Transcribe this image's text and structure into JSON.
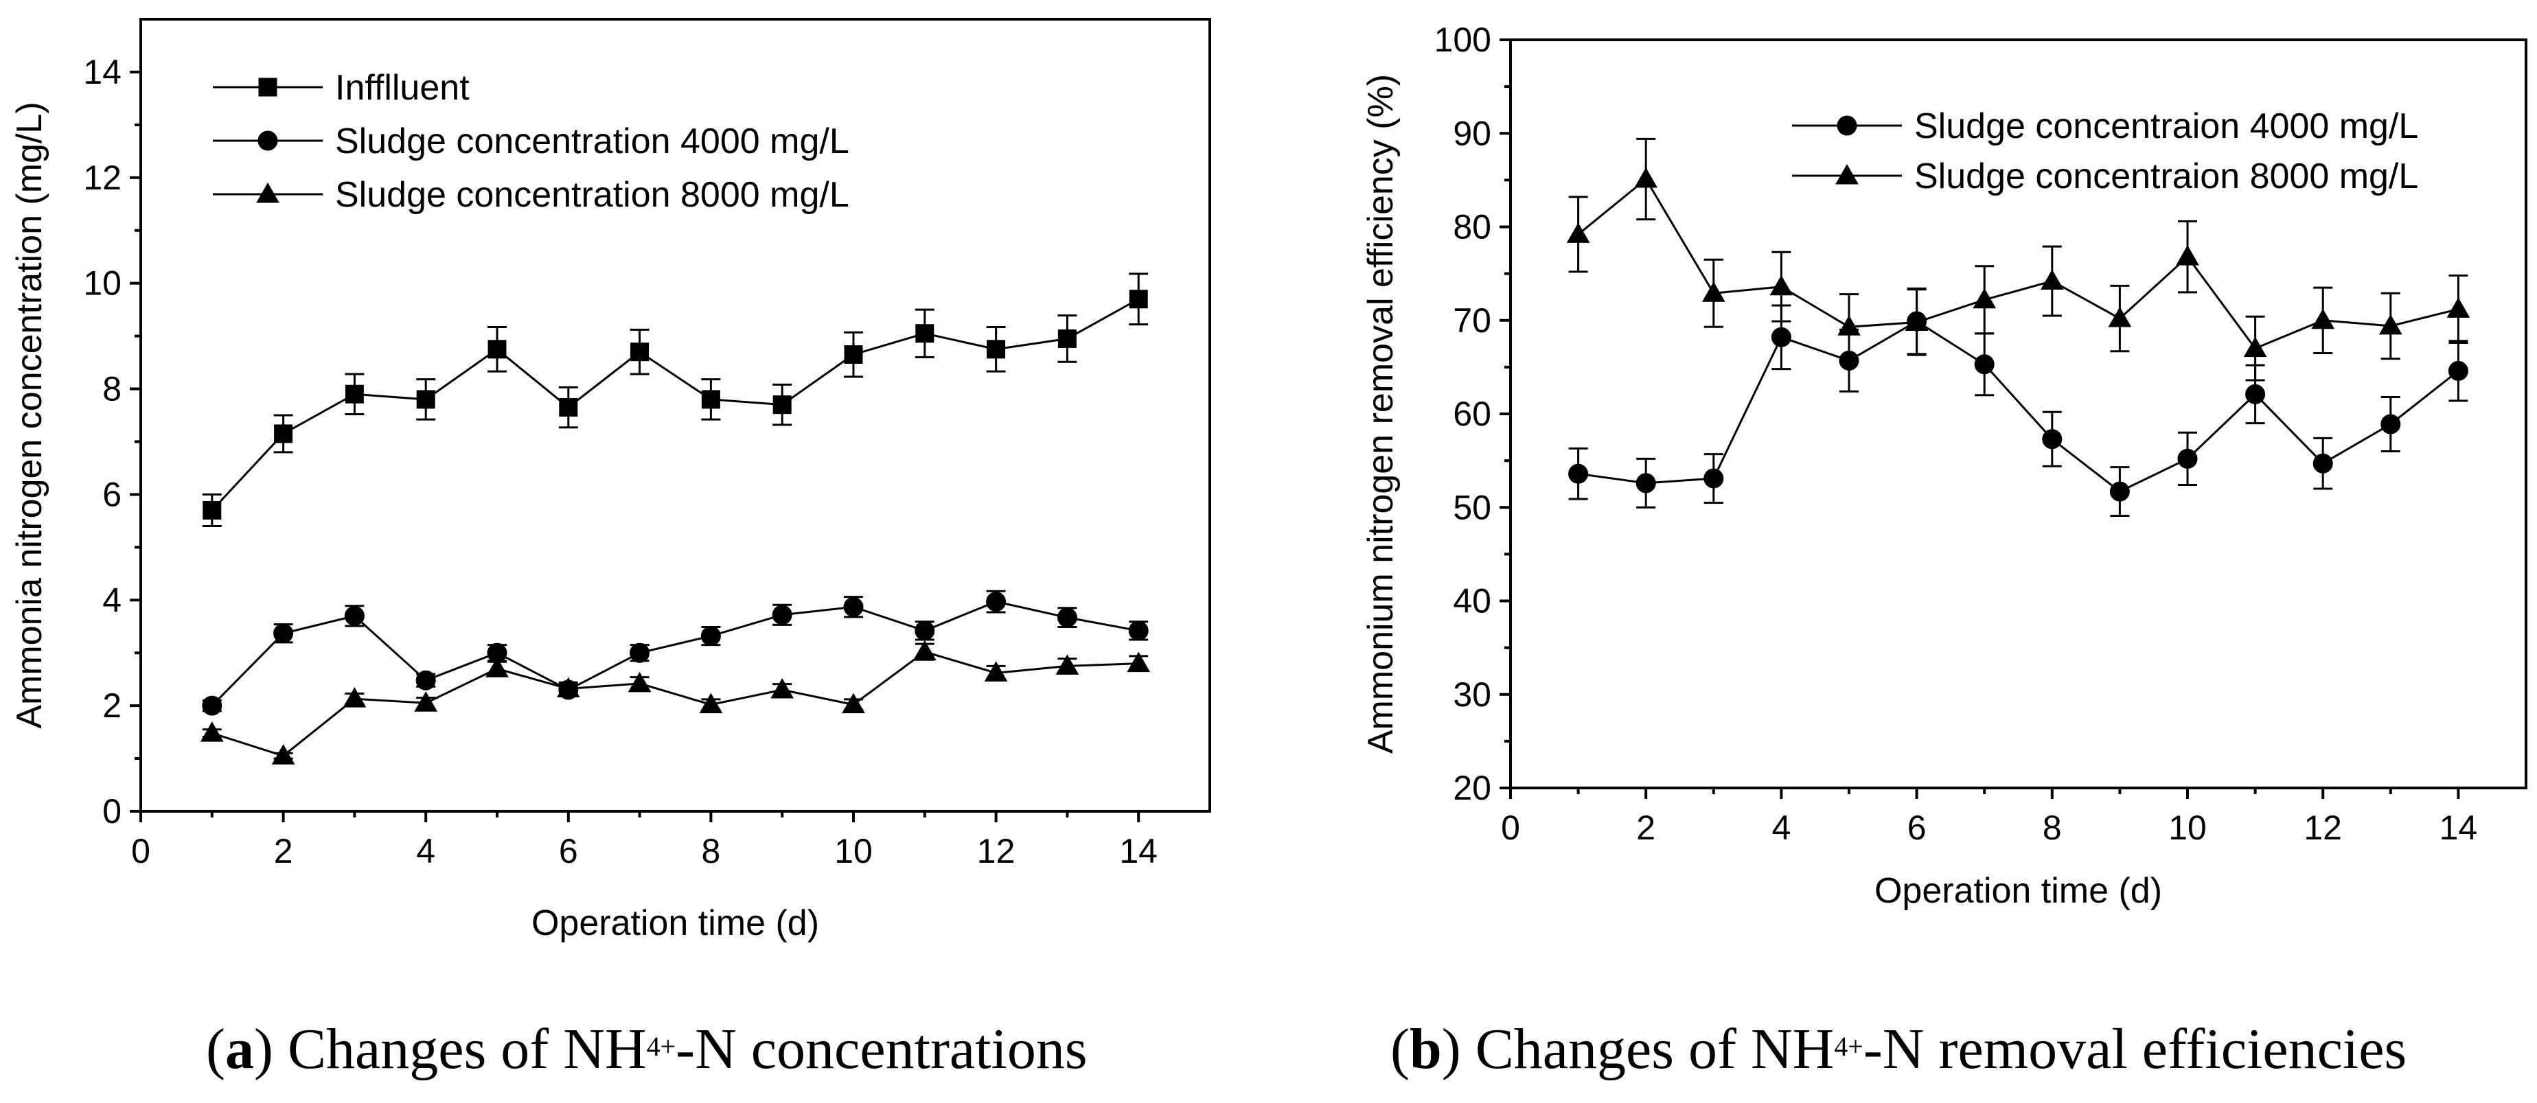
{
  "chart_data": [
    {
      "id": "a",
      "type": "line",
      "title": "",
      "xlabel": "Operation time (d)",
      "ylabel": "Ammonia nitrogen concentration (mg/L)",
      "xlim": [
        0,
        15
      ],
      "ylim": [
        0,
        15
      ],
      "xticks": [
        0,
        2,
        4,
        6,
        8,
        10,
        12,
        14
      ],
      "yticks": [
        0,
        2,
        4,
        6,
        8,
        10,
        12,
        14
      ],
      "legend_position": "top-left",
      "x": [
        1,
        2,
        3,
        4,
        5,
        6,
        7,
        8,
        9,
        10,
        11,
        12,
        13,
        14
      ],
      "series": [
        {
          "name": "Infflluent",
          "marker": "square",
          "values": [
            5.7,
            7.15,
            7.9,
            7.8,
            8.75,
            7.65,
            8.7,
            7.8,
            7.7,
            8.65,
            9.05,
            8.75,
            8.95,
            9.7
          ],
          "errors": [
            0.3,
            0.35,
            0.38,
            0.38,
            0.42,
            0.38,
            0.42,
            0.38,
            0.38,
            0.42,
            0.45,
            0.42,
            0.44,
            0.48
          ]
        },
        {
          "name": "Sludge concentration 4000 mg/L",
          "marker": "circle",
          "values": [
            2.0,
            3.37,
            3.7,
            2.48,
            3.0,
            2.3,
            3.0,
            3.32,
            3.72,
            3.87,
            3.42,
            3.97,
            3.67,
            3.42
          ],
          "errors": [
            0.1,
            0.17,
            0.19,
            0.12,
            0.15,
            0.11,
            0.15,
            0.17,
            0.19,
            0.19,
            0.17,
            0.2,
            0.18,
            0.17
          ]
        },
        {
          "name": "Sludge concentration 8000 mg/L",
          "marker": "triangle",
          "values": [
            1.48,
            1.05,
            2.13,
            2.05,
            2.7,
            2.32,
            2.42,
            2.02,
            2.3,
            2.02,
            3.02,
            2.62,
            2.75,
            2.8
          ],
          "errors": [
            0.07,
            0.05,
            0.1,
            0.1,
            0.13,
            0.12,
            0.12,
            0.1,
            0.11,
            0.1,
            0.15,
            0.13,
            0.14,
            0.14
          ]
        }
      ]
    },
    {
      "id": "b",
      "type": "line",
      "title": "",
      "xlabel": "Operation time (d)",
      "ylabel": "Ammonium nitrogen removal efficiency (%)",
      "xlim": [
        0,
        15
      ],
      "ylim": [
        20,
        100
      ],
      "xticks": [
        0,
        2,
        4,
        6,
        8,
        10,
        12,
        14
      ],
      "yticks": [
        20,
        30,
        40,
        50,
        60,
        70,
        80,
        90,
        100
      ],
      "legend_position": "top-right",
      "x": [
        1,
        2,
        3,
        4,
        5,
        6,
        7,
        8,
        9,
        10,
        11,
        12,
        13,
        14
      ],
      "series": [
        {
          "name": "Sludge concentraion 4000 mg/L",
          "marker": "circle",
          "values": [
            53.6,
            52.6,
            53.1,
            68.2,
            65.7,
            69.9,
            65.3,
            57.3,
            51.7,
            55.2,
            62.1,
            54.7,
            58.9,
            64.6
          ],
          "errors": [
            2.7,
            2.6,
            2.6,
            3.4,
            3.3,
            3.5,
            3.3,
            2.9,
            2.6,
            2.8,
            3.1,
            2.7,
            2.9,
            3.2
          ]
        },
        {
          "name": "Sludge concentraion 8000 mg/L",
          "marker": "triangle",
          "values": [
            79.2,
            85.1,
            72.9,
            73.6,
            69.3,
            69.8,
            72.2,
            74.2,
            70.2,
            76.8,
            67.0,
            70.0,
            69.4,
            71.2
          ],
          "errors": [
            4.0,
            4.3,
            3.6,
            3.7,
            3.5,
            3.5,
            3.6,
            3.7,
            3.5,
            3.8,
            3.4,
            3.5,
            3.5,
            3.6
          ]
        }
      ]
    }
  ],
  "captions": {
    "a": {
      "letter": "a",
      "pre": " Changes of NH",
      "sub": "4+",
      "post": "-N concentrations"
    },
    "b": {
      "letter": "b",
      "pre": " Changes of NH",
      "sub": "4+",
      "post": "-N removal efficiencies"
    }
  }
}
